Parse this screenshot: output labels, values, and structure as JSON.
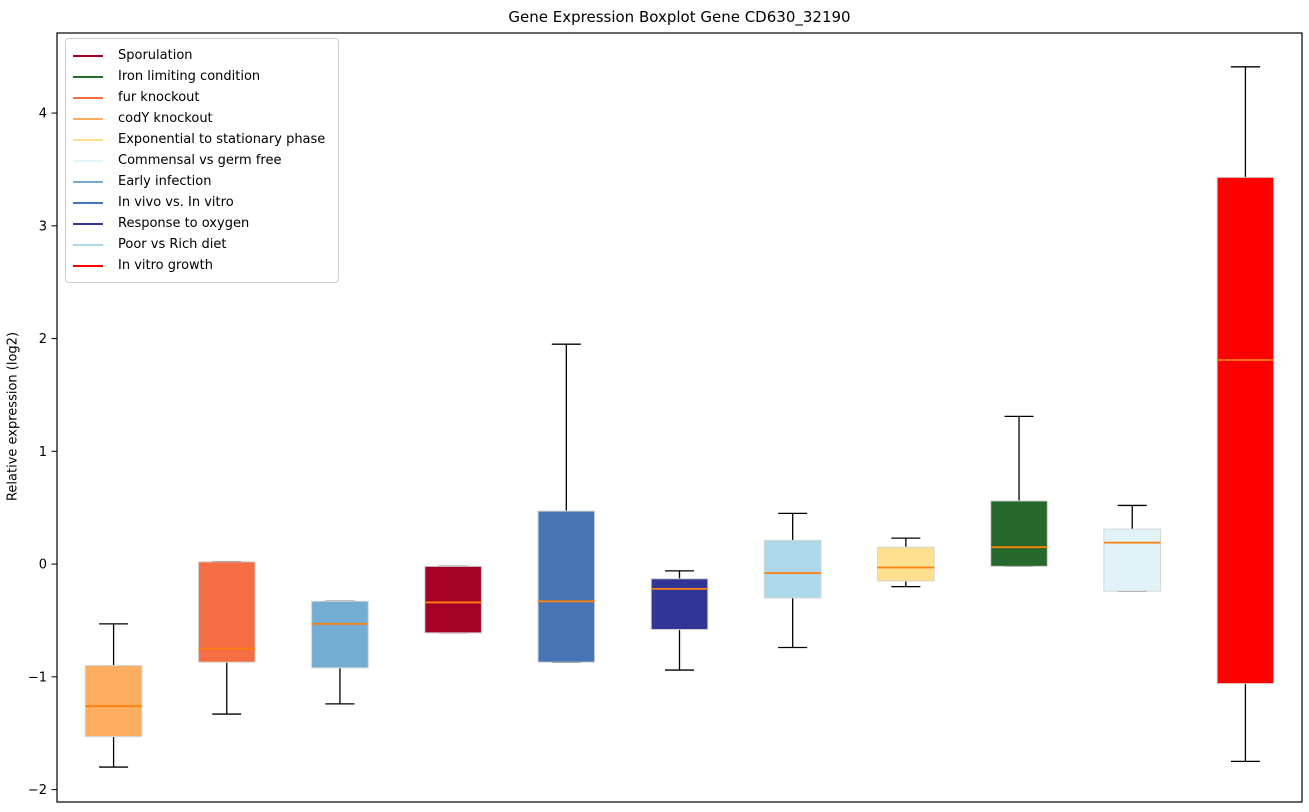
{
  "figure": {
    "title": "Gene Expression Boxplot Gene CD630_32190",
    "ylabel": "Relative expression (log2)"
  },
  "chart_data": {
    "type": "boxplot",
    "title": "Gene Expression Boxplot Gene CD630_32190",
    "xlabel": "",
    "ylabel": "Relative expression (log2)",
    "ylim": [
      -2.11,
      4.71
    ],
    "yticks": [
      {
        "value": 4,
        "label": "4"
      },
      {
        "value": 3,
        "label": "3"
      },
      {
        "value": 2,
        "label": "2"
      },
      {
        "value": 1,
        "label": "1"
      },
      {
        "value": 0,
        "label": "0"
      },
      {
        "value": -1,
        "label": "−1"
      },
      {
        "value": -2,
        "label": "−2"
      }
    ],
    "grid": false,
    "legend_position": "upper-left",
    "median_color": "#ff7f0e",
    "whisker_color": "#000000",
    "box_edge_color": "#d4d4d4",
    "legend": [
      {
        "label": "Sporulation",
        "color": "#a50026"
      },
      {
        "label": "Iron limiting condition",
        "color": "#26692c"
      },
      {
        "label": "fur knockout",
        "color": "#f46d43"
      },
      {
        "label": "codY knockout",
        "color": "#fdae61"
      },
      {
        "label": "Exponential to stationary phase",
        "color": "#fee090"
      },
      {
        "label": "Commensal vs germ free",
        "color": "#e0f3f8"
      },
      {
        "label": "Early infection",
        "color": "#74add1"
      },
      {
        "label": "In vivo vs. In vitro",
        "color": "#4575b4"
      },
      {
        "label": "Response to oxygen",
        "color": "#313695"
      },
      {
        "label": "Poor vs Rich diet",
        "color": "#abd9e9"
      },
      {
        "label": "In vitro growth",
        "color": "#ff0000"
      }
    ],
    "series": [
      {
        "label": "codY knockout",
        "color": "#fdae61",
        "whislo": -1.8,
        "q1": -1.53,
        "med": -1.26,
        "q3": -0.9,
        "whishi": -0.53
      },
      {
        "label": "fur knockout",
        "color": "#f46d43",
        "whislo": -1.33,
        "q1": -0.87,
        "med": -0.75,
        "q3": 0.02,
        "whishi": 0.02
      },
      {
        "label": "Early infection",
        "color": "#74add1",
        "whislo": -1.24,
        "q1": -0.92,
        "med": -0.53,
        "q3": -0.33,
        "whishi": -0.33
      },
      {
        "label": "Sporulation",
        "color": "#a50026",
        "whislo": -0.61,
        "q1": -0.61,
        "med": -0.34,
        "q3": -0.02,
        "whishi": -0.02
      },
      {
        "label": "In vivo vs. In vitro",
        "color": "#4575b4",
        "whislo": -0.87,
        "q1": -0.87,
        "med": -0.33,
        "q3": 0.47,
        "whishi": 1.95
      },
      {
        "label": "Response to oxygen",
        "color": "#313695",
        "whislo": -0.94,
        "q1": -0.58,
        "med": -0.22,
        "q3": -0.13,
        "whishi": -0.06
      },
      {
        "label": "Poor vs Rich diet",
        "color": "#abd9e9",
        "whislo": -0.74,
        "q1": -0.3,
        "med": -0.08,
        "q3": 0.21,
        "whishi": 0.45
      },
      {
        "label": "Exponential to stationary phase",
        "color": "#fee090",
        "whislo": -0.2,
        "q1": -0.15,
        "med": -0.03,
        "q3": 0.15,
        "whishi": 0.23
      },
      {
        "label": "Iron limiting condition",
        "color": "#26692c",
        "whislo": -0.02,
        "q1": -0.02,
        "med": 0.15,
        "q3": 0.56,
        "whishi": 1.31
      },
      {
        "label": "Commensal vs germ free",
        "color": "#e0f3f8",
        "whislo": -0.24,
        "q1": -0.24,
        "med": 0.19,
        "q3": 0.31,
        "whishi": 0.52
      },
      {
        "label": "In vitro growth",
        "color": "#ff0000",
        "whislo": -1.75,
        "q1": -1.06,
        "med": 1.81,
        "q3": 3.43,
        "whishi": 4.41
      }
    ]
  }
}
